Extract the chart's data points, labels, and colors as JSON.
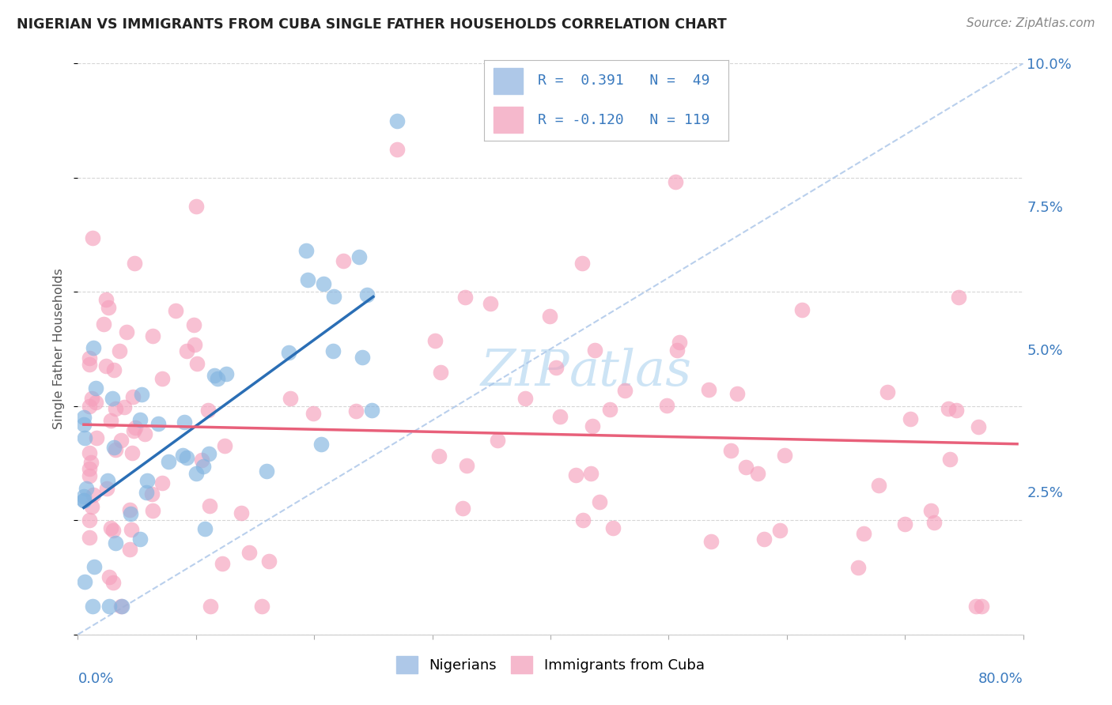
{
  "title": "NIGERIAN VS IMMIGRANTS FROM CUBA SINGLE FATHER HOUSEHOLDS CORRELATION CHART",
  "source": "Source: ZipAtlas.com",
  "ylabel": "Single Father Households",
  "xlim": [
    0.0,
    0.8
  ],
  "ylim": [
    0.0,
    0.1
  ],
  "blue_color": "#82b4e0",
  "pink_color": "#f5a0bc",
  "trend_blue_color": "#2a6eb5",
  "trend_pink_color": "#e8607a",
  "diag_color": "#a8c4e8",
  "watermark_color": "#cde4f5",
  "nigeria_seed": 12,
  "cuba_seed": 77,
  "n_nigeria": 49,
  "n_cuba": 119
}
